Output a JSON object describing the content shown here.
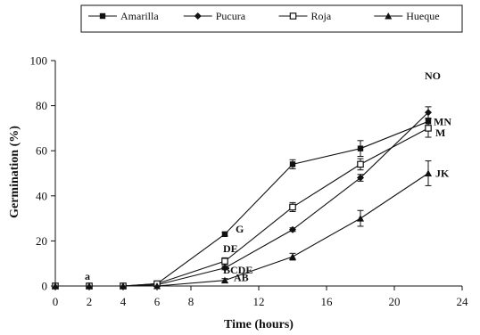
{
  "chart_data": {
    "type": "line",
    "xlabel": "Time (hours)",
    "ylabel": "Germination (%)",
    "xlim": [
      0,
      24
    ],
    "ylim": [
      0,
      100
    ],
    "xticks": [
      "0",
      "2",
      "4",
      "6",
      "8",
      "12",
      "16",
      "20",
      "24"
    ],
    "yticks": [
      "0",
      "20",
      "40",
      "60",
      "80",
      "100"
    ],
    "grid": false,
    "legend_position": "top",
    "x": [
      0,
      2,
      4,
      6,
      10,
      14,
      18,
      22
    ],
    "series": [
      {
        "name": "Amarilla",
        "marker": "square",
        "values": [
          0,
          0,
          0,
          1,
          23,
          54,
          61,
          73
        ],
        "errors": [
          0,
          0,
          0,
          0.5,
          0.8,
          2.0,
          3.5,
          4.0
        ]
      },
      {
        "name": "Pucura",
        "marker": "diamond",
        "values": [
          0,
          0,
          0,
          0.5,
          8,
          25,
          48,
          77
        ],
        "errors": [
          0,
          0,
          0,
          0.5,
          0.8,
          0.8,
          1.5,
          2.5
        ]
      },
      {
        "name": "Roja",
        "marker": "open-square",
        "values": [
          0,
          0,
          0,
          1,
          11,
          35,
          54,
          70
        ],
        "errors": [
          0,
          0,
          0,
          1.0,
          1.5,
          2.0,
          2.5,
          4.0
        ]
      },
      {
        "name": "Hueque",
        "marker": "triangle",
        "values": [
          0,
          0,
          0,
          0,
          2.5,
          13,
          30,
          50
        ],
        "errors": [
          0,
          0,
          0,
          0,
          0.8,
          1.5,
          3.5,
          5.5
        ]
      }
    ],
    "annotations": [
      {
        "text": "a",
        "x": 2,
        "y": 0
      },
      {
        "text": "G",
        "x": 10,
        "y": 23
      },
      {
        "text": "DE",
        "x": 10,
        "y": 11
      },
      {
        "text": "BCDE",
        "x": 10,
        "y": 8
      },
      {
        "text": "AB",
        "x": 10,
        "y": 2.5
      },
      {
        "text": "NO",
        "x": 22,
        "y": 77
      },
      {
        "text": "MN",
        "x": 22,
        "y": 73
      },
      {
        "text": "M",
        "x": 22,
        "y": 70
      },
      {
        "text": "JK",
        "x": 22,
        "y": 50
      }
    ]
  }
}
